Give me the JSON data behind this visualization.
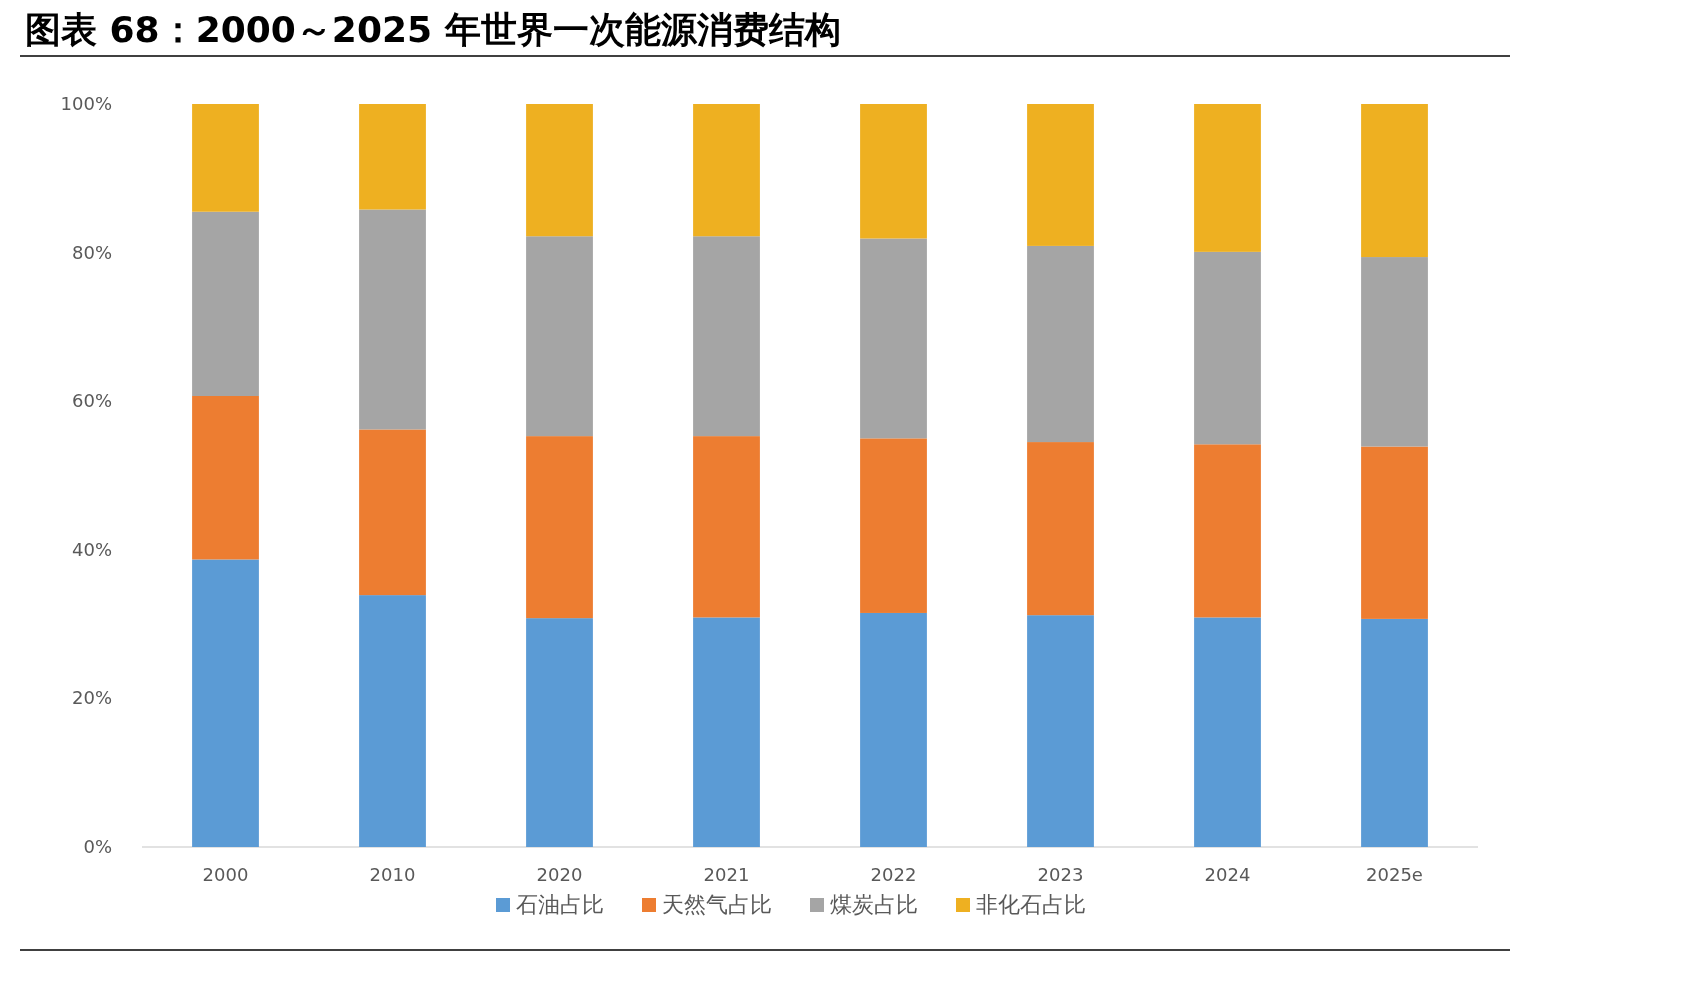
{
  "chart_data": {
    "type": "bar",
    "title": "图表 68：2000～2025 年世界一次能源消费结构",
    "stacked": true,
    "legend": "bottom",
    "categories": [
      "2000",
      "2010",
      "2020",
      "2021",
      "2022",
      "2023",
      "2024",
      "2025e"
    ],
    "ylim": [
      0,
      100
    ],
    "yticks": [
      {
        "value": 0,
        "label": "0%"
      },
      {
        "value": 20,
        "label": "20%"
      },
      {
        "value": 40,
        "label": "40%"
      },
      {
        "value": 60,
        "label": "60%"
      },
      {
        "value": 80,
        "label": "80%"
      },
      {
        "value": 100,
        "label": "100%"
      }
    ],
    "series": [
      {
        "name": "石油占比",
        "color": "#5b9bd5",
        "values": [
          38.7,
          33.9,
          30.8,
          30.9,
          31.5,
          31.2,
          30.9,
          30.7
        ]
      },
      {
        "name": "天然气占比",
        "color": "#ed7d31",
        "values": [
          22.0,
          22.3,
          24.5,
          24.4,
          23.5,
          23.3,
          23.3,
          23.2
        ]
      },
      {
        "name": "煤炭占比",
        "color": "#a5a5a5",
        "values": [
          24.8,
          29.6,
          26.9,
          26.9,
          26.9,
          26.4,
          25.9,
          25.5
        ]
      },
      {
        "name": "非化石占比",
        "color": "#eeb021",
        "values": [
          14.5,
          14.2,
          17.8,
          17.8,
          18.1,
          19.1,
          19.9,
          20.6
        ]
      }
    ]
  }
}
